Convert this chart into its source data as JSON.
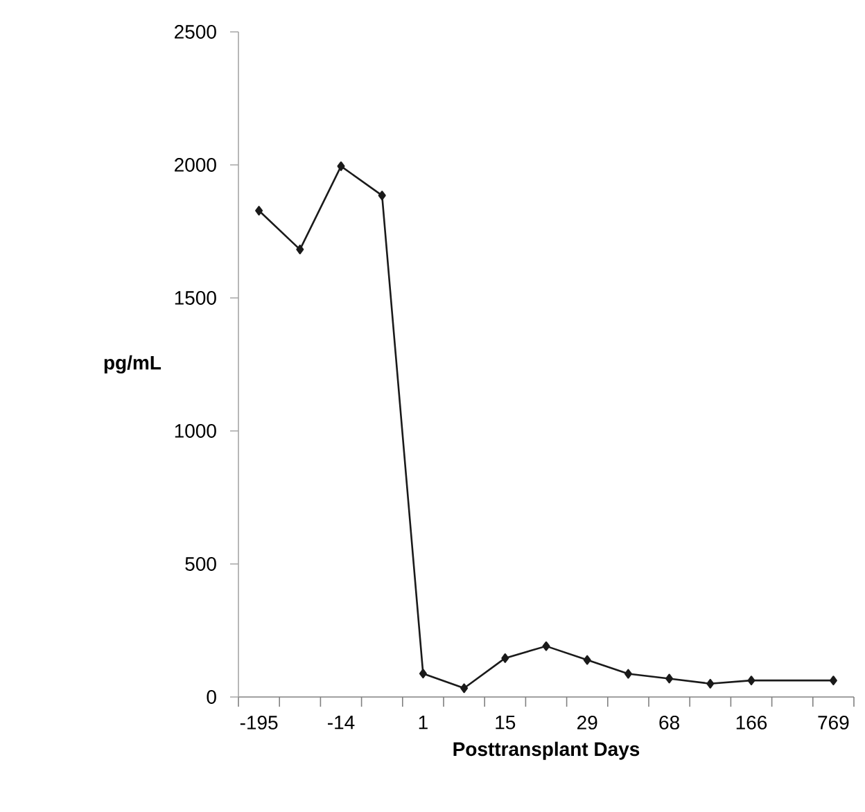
{
  "chart_data": {
    "type": "line",
    "xlabel": "Posttransplant Days",
    "ylabel": "pg/mL",
    "categories": [
      "-195",
      null,
      "-14",
      null,
      "1",
      null,
      "15",
      null,
      "29",
      null,
      "68",
      null,
      "166",
      null,
      "769"
    ],
    "series": [
      {
        "color": "#1a1a1a",
        "values": [
          1828,
          1682,
          1995,
          1885,
          88,
          33,
          146,
          191,
          139,
          87,
          69,
          50,
          62,
          null,
          62
        ]
      }
    ],
    "ylim": [
      0,
      2500
    ],
    "yticks": [
      0,
      500,
      1000,
      1500,
      2000,
      2500
    ],
    "grid": false,
    "marker": "diamond",
    "line_style": "solid"
  }
}
